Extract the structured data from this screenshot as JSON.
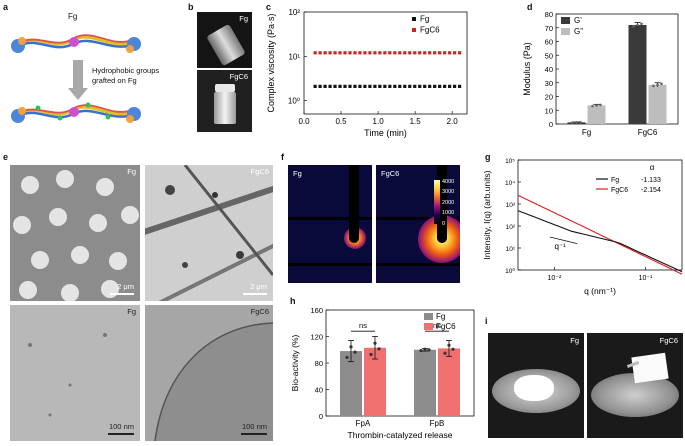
{
  "panels": {
    "a": {
      "letter": "a",
      "top_label": "Fg",
      "arrow_text_1": "Hydrophobic groups",
      "arrow_text_2": "grafted on Fg"
    },
    "b": {
      "letter": "b",
      "label_top": "Fg",
      "label_bottom": "FgC6"
    },
    "c": {
      "letter": "c"
    },
    "d": {
      "letter": "d"
    },
    "e": {
      "letter": "e",
      "tl": "Fg",
      "tr": "FgC6",
      "bl": "Fg",
      "br": "FgC6",
      "scale_top_left": "2 μm",
      "scale_top_right": "2 μm",
      "scale_bottom_left": "100 nm",
      "scale_bottom_right": "100 nm"
    },
    "f": {
      "letter": "f",
      "left": "Fg",
      "right": "FgC6",
      "cbar_ticks": [
        "4000",
        "3000",
        "2000",
        "1000",
        "0"
      ]
    },
    "g": {
      "letter": "g"
    },
    "h": {
      "letter": "h"
    },
    "i": {
      "letter": "i",
      "left": "Fg",
      "right": "FgC6"
    }
  },
  "chart_data": [
    {
      "panel": "c",
      "type": "scatter",
      "xlabel": "Time (min)",
      "ylabel": "Complex viscosity (Pa·s)",
      "yscale": "log",
      "xlim": [
        0,
        2.2
      ],
      "ylim": [
        0.5,
        100
      ],
      "xticks": [
        "0.0",
        "0.5",
        "1.0",
        "1.5",
        "2.0"
      ],
      "yticks": [
        "10⁰",
        "10¹",
        "10²"
      ],
      "legend": "top-right",
      "series": [
        {
          "name": "Fg",
          "color": "#111111",
          "x_start": 0.15,
          "x_end": 2.1,
          "n": 30,
          "y": 2.1
        },
        {
          "name": "FgC6",
          "color": "#d42020",
          "x_start": 0.15,
          "x_end": 2.1,
          "n": 30,
          "y": 12.0
        }
      ]
    },
    {
      "panel": "d",
      "type": "bar",
      "xlabel": "",
      "ylabel": "Modulus (Pa)",
      "ylim": [
        0,
        80
      ],
      "yticks": [
        "0",
        "10",
        "20",
        "30",
        "40",
        "50",
        "60",
        "70",
        "80"
      ],
      "categories": [
        "Fg",
        "FgC6"
      ],
      "legend": "top-left",
      "series": [
        {
          "name": "G'",
          "color": "#3a3a3a",
          "values": [
            1.2,
            72.0
          ],
          "err": [
            0.3,
            1.8
          ]
        },
        {
          "name": "G''",
          "color": "#bdbdbd",
          "values": [
            13.5,
            28.5
          ],
          "err": [
            0.8,
            1.5
          ]
        }
      ]
    },
    {
      "panel": "g",
      "type": "line",
      "xlabel": "q (nm⁻¹)",
      "ylabel": "Intensity, I(q) (arb.units)",
      "xscale": "log",
      "yscale": "log",
      "xticks": [
        "10⁻²",
        "10⁻¹"
      ],
      "yticks": [
        "10⁰",
        "10¹",
        "10²",
        "10³",
        "10⁴",
        "10⁵"
      ],
      "legend_title": "α",
      "annotation": "q⁻¹",
      "series": [
        {
          "name": "Fg",
          "color": "#111111",
          "alpha": "-1.133"
        },
        {
          "name": "FgC6",
          "color": "#d42020",
          "alpha": "-2.154"
        }
      ]
    },
    {
      "panel": "h",
      "type": "bar",
      "xlabel": "Thrombin-catalyzed release",
      "ylabel": "Bio-activity (%)",
      "ylim": [
        0,
        160
      ],
      "yticks": [
        "0",
        "40",
        "80",
        "120",
        "160"
      ],
      "categories": [
        "FpA",
        "FpB"
      ],
      "significance": [
        "ns",
        "ns"
      ],
      "legend": "top-right",
      "series": [
        {
          "name": "Fg",
          "color": "#8c8c8c",
          "values": [
            98,
            100
          ],
          "err": [
            16,
            2
          ]
        },
        {
          "name": "FgC6",
          "color": "#f07070",
          "values": [
            103,
            102
          ],
          "err": [
            17,
            12
          ]
        }
      ]
    }
  ]
}
